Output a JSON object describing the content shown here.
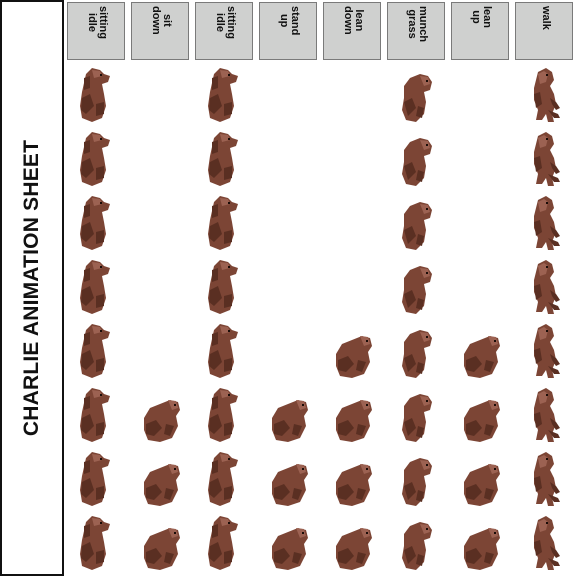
{
  "title": "CHARLIE ANIMATION SHEET",
  "columns": [
    {
      "label": "sitting\nidle",
      "frames": 8
    },
    {
      "label": "sit\ndown",
      "frames": 3
    },
    {
      "label": "sitting\nidle",
      "frames": 8
    },
    {
      "label": "stand\nup",
      "frames": 3
    },
    {
      "label": "lean\ndown",
      "frames": 4
    },
    {
      "label": "munch\ngrass",
      "frames": 8
    },
    {
      "label": "lean\nup",
      "frames": 4
    },
    {
      "label": "walk",
      "frames": 8
    }
  ],
  "rows": 8,
  "colors": {
    "fur_dark": "#5a2f22",
    "fur_mid": "#7c4535",
    "fur_light": "#9c6252",
    "eye": "#1a0c08"
  },
  "sprite_icon": "capybara-sprite-icon"
}
